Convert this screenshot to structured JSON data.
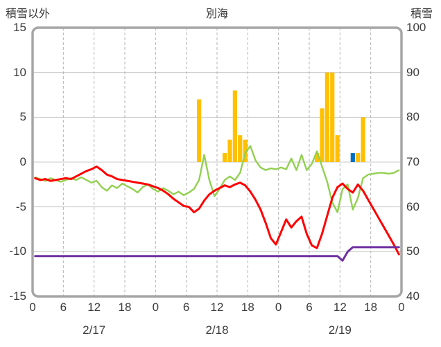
{
  "chart_data": {
    "type": "bar+line combo (weather time series)",
    "title": "別海",
    "x_hours_total": 72,
    "x_tick_interval_hours": 6,
    "hour_tick_labels": [
      "0",
      "6",
      "12",
      "18",
      "0",
      "6",
      "12",
      "18",
      "0",
      "6",
      "12",
      "18",
      "0"
    ],
    "date_labels": [
      "2/17",
      "2/18",
      "2/19"
    ],
    "left_axis": {
      "title": "積雪以外",
      "min": -15,
      "max": 15,
      "ticks": [
        15,
        10,
        5,
        0,
        -5,
        -10,
        -15
      ]
    },
    "right_axis": {
      "title": "積雪",
      "min": 40,
      "max": 100,
      "ticks": [
        100,
        90,
        80,
        70,
        60,
        50,
        40
      ]
    },
    "grid": {
      "h_color": "#c9c9c9",
      "v_color": "#b3b3b3",
      "v_dashed": true
    },
    "frame_color": "#a6a6a6",
    "background": "#ffffff",
    "series": [
      {
        "name": "precipitation-bars-orange",
        "type": "bar",
        "axis": "left",
        "color": "#FFC000",
        "values": [
          0,
          0,
          0,
          0,
          0,
          0,
          0,
          0,
          0,
          0,
          0,
          0,
          0,
          0,
          0,
          0,
          0,
          0,
          0,
          0,
          0,
          0,
          0,
          0,
          0,
          0,
          0,
          0,
          0,
          0,
          0,
          0,
          7,
          0,
          0,
          0,
          0,
          1,
          2.5,
          8,
          3,
          2.5,
          0,
          0,
          0,
          0,
          0,
          0,
          0,
          0,
          0,
          0,
          0,
          0,
          0,
          1,
          6,
          10,
          10,
          3,
          0,
          0,
          0,
          1,
          5,
          0,
          0,
          0,
          0,
          0,
          0,
          0
        ]
      },
      {
        "name": "precipitation-bar-blue",
        "type": "bar",
        "axis": "left",
        "color": "#0070C0",
        "values": [
          0,
          0,
          0,
          0,
          0,
          0,
          0,
          0,
          0,
          0,
          0,
          0,
          0,
          0,
          0,
          0,
          0,
          0,
          0,
          0,
          0,
          0,
          0,
          0,
          0,
          0,
          0,
          0,
          0,
          0,
          0,
          0,
          0,
          0,
          0,
          0,
          0,
          0,
          0,
          0,
          0,
          0,
          0,
          0,
          0,
          0,
          0,
          0,
          0,
          0,
          0,
          0,
          0,
          0,
          0,
          0,
          0,
          0,
          0,
          0,
          0,
          0,
          1,
          0,
          0,
          0,
          0,
          0,
          0,
          0,
          0,
          0
        ]
      },
      {
        "name": "green-line",
        "type": "line",
        "axis": "left",
        "color": "#92D050",
        "width": 2.4,
        "values": [
          -1.7,
          -1.9,
          -2.1,
          -1.8,
          -2,
          -2.2,
          -2,
          -1.8,
          -2,
          -1.7,
          -2,
          -2.3,
          -2.1,
          -2.8,
          -3.2,
          -2.6,
          -2.9,
          -2.4,
          -2.7,
          -3,
          -3.4,
          -2.8,
          -2.5,
          -3,
          -3.3,
          -2.9,
          -3.2,
          -3.6,
          -3.3,
          -3.7,
          -3.4,
          -3,
          -2,
          0.8,
          -2,
          -3.8,
          -3,
          -2,
          -1.6,
          -2,
          -1.2,
          1,
          1.8,
          0.2,
          -0.6,
          -0.9,
          -0.7,
          -0.8,
          -0.6,
          -0.8,
          0.4,
          -0.9,
          0.8,
          -0.9,
          -0.2,
          1.2,
          -0.5,
          -2.2,
          -4.5,
          -5.6,
          -3,
          -2.5,
          -5.3,
          -4,
          -1.8,
          -1.4,
          -1.3,
          -1.2,
          -1.2,
          -1.3,
          -1.2,
          -0.9
        ]
      },
      {
        "name": "red-line",
        "type": "line",
        "axis": "left",
        "color": "#FF0000",
        "width": 3,
        "values": [
          -1.8,
          -2,
          -1.9,
          -2.1,
          -2,
          -1.9,
          -1.8,
          -1.9,
          -1.6,
          -1.3,
          -1,
          -0.8,
          -0.5,
          -0.9,
          -1.4,
          -1.6,
          -1.9,
          -2,
          -2.1,
          -2.2,
          -2.3,
          -2.4,
          -2.5,
          -2.7,
          -2.9,
          -3.2,
          -3.6,
          -4.1,
          -4.5,
          -4.9,
          -5,
          -5.6,
          -5.2,
          -4.3,
          -3.6,
          -3.2,
          -2.9,
          -2.6,
          -2.8,
          -2.5,
          -2.3,
          -2.6,
          -3.3,
          -4.2,
          -5.3,
          -6.8,
          -8.5,
          -9.2,
          -7.8,
          -6.4,
          -7.3,
          -6.6,
          -6.1,
          -8,
          -9.3,
          -9.6,
          -8,
          -6,
          -4,
          -2.8,
          -2.4,
          -3,
          -3.4,
          -2.5,
          -3.2,
          -4.2,
          -5.2,
          -6.2,
          -7.2,
          -8.2,
          -9.2,
          -10.3
        ]
      },
      {
        "name": "purple-line-snowdepth",
        "type": "line",
        "axis": "right",
        "color": "#7030A0",
        "width": 3,
        "values": [
          49,
          49,
          49,
          49,
          49,
          49,
          49,
          49,
          49,
          49,
          49,
          49,
          49,
          49,
          49,
          49,
          49,
          49,
          49,
          49,
          49,
          49,
          49,
          49,
          49,
          49,
          49,
          49,
          49,
          49,
          49,
          49,
          49,
          49,
          49,
          49,
          49,
          49,
          49,
          49,
          49,
          49,
          49,
          49,
          49,
          49,
          49,
          49,
          49,
          49,
          49,
          49,
          49,
          49,
          49,
          49,
          49,
          49,
          49,
          49,
          48,
          50,
          51,
          51,
          51,
          51,
          51,
          51,
          51,
          51,
          51,
          51
        ]
      }
    ]
  }
}
